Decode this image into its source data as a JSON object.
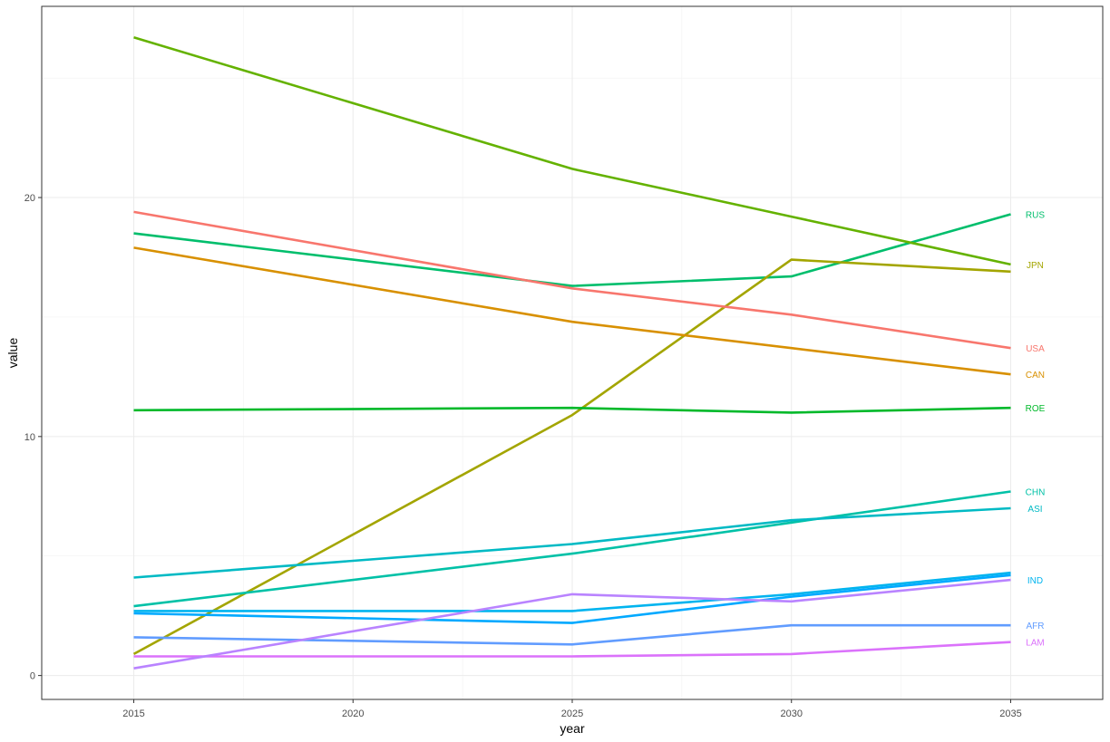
{
  "chart_data": {
    "type": "line",
    "title": "",
    "xlabel": "year",
    "ylabel": "value",
    "xlim": [
      2012.9,
      2037.1
    ],
    "ylim": [
      -1.0,
      28.0
    ],
    "x_ticks": [
      2015,
      2020,
      2025,
      2030,
      2035
    ],
    "y_ticks": [
      0,
      10,
      20
    ],
    "x": [
      2015,
      2025,
      2030,
      2035
    ],
    "grid": true,
    "legend": "none (direct labels at line ends)",
    "series": [
      {
        "name": "RUS",
        "color": "#00BE6C",
        "values": [
          18.5,
          16.3,
          16.7,
          19.3
        ]
      },
      {
        "name": "JPN",
        "color": "#A3A500",
        "values": [
          0.9,
          10.9,
          17.4,
          16.9
        ]
      },
      {
        "name": "USA",
        "color": "#F8766D",
        "values": [
          19.4,
          16.2,
          15.1,
          13.7
        ]
      },
      {
        "name": "CAN",
        "color": "#D89000",
        "values": [
          17.9,
          14.8,
          13.7,
          12.6
        ]
      },
      {
        "name": "ROE",
        "color": "#00B92A",
        "values": [
          11.1,
          11.2,
          11.0,
          11.2
        ]
      },
      {
        "name": "CHN",
        "color": "#00C1A7",
        "values": [
          2.9,
          5.1,
          6.4,
          7.7
        ]
      },
      {
        "name": "ASI",
        "color": "#00BAC4",
        "values": [
          4.1,
          5.5,
          6.5,
          7.0
        ]
      },
      {
        "name": "IND",
        "color": "#00B4EF",
        "values": [
          2.7,
          2.7,
          3.4,
          4.3
        ]
      },
      {
        "name": "AFR",
        "color": "#619CFF",
        "values": [
          1.6,
          1.3,
          2.1,
          2.1
        ]
      },
      {
        "name": "LAM",
        "color": "#DB72FB",
        "values": [
          0.8,
          0.8,
          0.9,
          1.4
        ]
      },
      {
        "name": "",
        "color": "#64B200",
        "values": [
          26.7,
          21.2,
          19.2,
          17.2
        ]
      },
      {
        "name": "",
        "color": "#00A9FF",
        "values": [
          2.6,
          2.2,
          3.3,
          4.2
        ]
      },
      {
        "name": "",
        "color": "#B983FF",
        "values": [
          0.3,
          3.4,
          3.1,
          4.0
        ]
      }
    ]
  }
}
